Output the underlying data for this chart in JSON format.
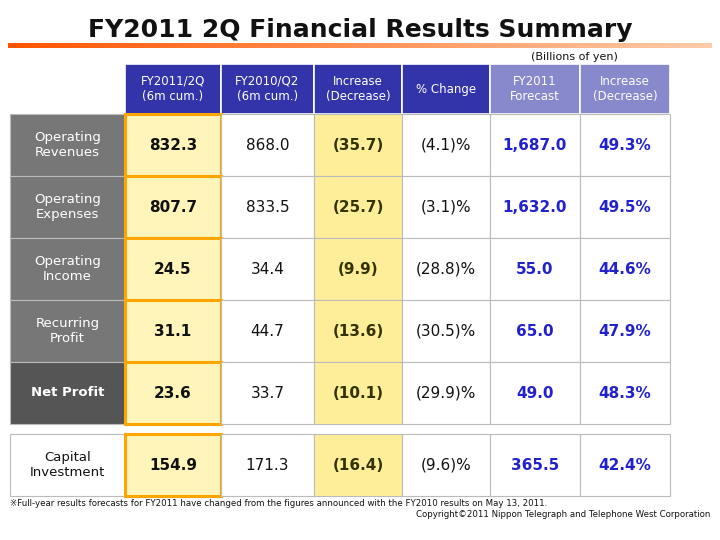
{
  "title": "FY2011 2Q Financial Results Summary",
  "subtitle": "(Billions of yen)",
  "footnote1": "※Full-year results forecasts for FY2011 have changed from the figures announced with the FY2010 results on May 13, 2011.",
  "footnote2": "Copyright©2011 Nippon Telegraph and Telephone West Corporation",
  "headers": [
    "FY2011/2Q\n(6m cum.)",
    "FY2010/Q2\n(6m cum.)",
    "Increase\n(Decrease)",
    "% Change",
    "FY2011\nForecast",
    "Increase\n(Decrease)"
  ],
  "row_labels": [
    "Operating\nRevenues",
    "Operating\nExpenses",
    "Operating\nIncome",
    "Recurring\nProfit",
    "Net Profit"
  ],
  "capital_label": "Capital\nInvestment",
  "rows": [
    [
      "832.3",
      "868.0",
      "(35.7)",
      "(4.1)%",
      "1,687.0",
      "49.3%"
    ],
    [
      "807.7",
      "833.5",
      "(25.7)",
      "(3.1)%",
      "1,632.0",
      "49.5%"
    ],
    [
      "24.5",
      "34.4",
      "(9.9)",
      "(28.8)%",
      "55.0",
      "44.6%"
    ],
    [
      "31.1",
      "44.7",
      "(13.6)",
      "(30.5)%",
      "65.0",
      "47.9%"
    ],
    [
      "23.6",
      "33.7",
      "(10.1)",
      "(29.9)%",
      "49.0",
      "48.3%"
    ]
  ],
  "capital_row": [
    "154.9",
    "171.3",
    "(16.4)",
    "(9.6)%",
    "365.5",
    "42.4%"
  ],
  "header_bg_dark": "#3333AA",
  "header_bg_light": "#8888CC",
  "row_label_bg_normal": "#777777",
  "row_label_bg_net": "#555555",
  "cell_yellow": "#FFF5BB",
  "cell_yellow_increase": "#FFEE99",
  "cell_white": "#FFFFFF",
  "border_orange": "#FFA500",
  "text_blue": "#2222CC",
  "text_dark": "#111111",
  "text_white": "#FFFFFF",
  "text_increase": "#333300",
  "title_color": "#111111",
  "title_fontsize": 18,
  "header_fontsize": 8.5,
  "cell_fontsize": 11,
  "label_fontsize": 9.5
}
